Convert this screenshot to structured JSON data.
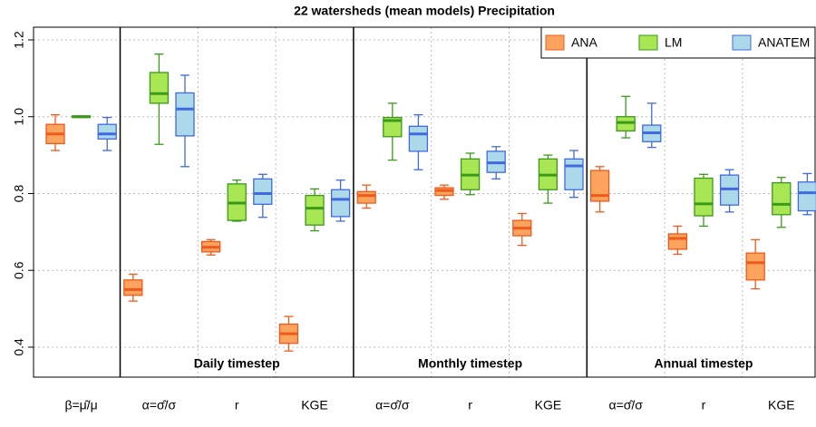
{
  "chart_data": {
    "type": "box",
    "title": "22 watersheds (mean models) Precipitation",
    "categories": [
      "β=μ̂/μ",
      "α=σ̂/σ",
      "r",
      "KGE",
      "α=σ̂/σ",
      "r",
      "KGE",
      "α=σ̂/σ",
      "r",
      "KGE"
    ],
    "annotations": [
      "Daily timestep",
      "Monthly timestep",
      "Annual timestep"
    ],
    "ylim": [
      0.322,
      1.233
    ],
    "yticks": [
      0.4,
      0.6,
      0.8,
      {
        "value": 1,
        "label": "1.0"
      },
      1.2
    ],
    "grid": true,
    "legend": "top-right",
    "series": [
      {
        "name": "ANA",
        "color": "#fca35d",
        "edge": "#ef5a1c",
        "low": [
          0.912,
          0.52,
          0.64,
          0.39,
          0.762,
          0.785,
          0.665,
          0.752,
          0.642,
          0.552
        ],
        "q1": [
          0.93,
          0.535,
          0.648,
          0.41,
          0.775,
          0.795,
          0.69,
          0.78,
          0.655,
          0.575
        ],
        "median": [
          0.955,
          0.55,
          0.66,
          0.435,
          0.795,
          0.808,
          0.71,
          0.795,
          0.683,
          0.62
        ],
        "q3": [
          0.98,
          0.575,
          0.675,
          0.46,
          0.805,
          0.815,
          0.73,
          0.86,
          0.695,
          0.645
        ],
        "high": [
          1.005,
          0.59,
          0.68,
          0.48,
          0.822,
          0.822,
          0.748,
          0.87,
          0.715,
          0.68
        ]
      },
      {
        "name": "LM",
        "color": "#a9e653",
        "edge": "#3a9a1a",
        "low": [
          0.998,
          0.928,
          0.728,
          0.703,
          0.887,
          0.797,
          0.775,
          0.945,
          0.715,
          0.712
        ],
        "q1": [
          0.998,
          1.035,
          0.73,
          0.718,
          0.948,
          0.81,
          0.81,
          0.963,
          0.742,
          0.745
        ],
        "median": [
          1.0,
          1.06,
          0.775,
          0.762,
          0.99,
          0.848,
          0.848,
          0.985,
          0.773,
          0.772
        ],
        "q3": [
          1.002,
          1.115,
          0.825,
          0.795,
          0.998,
          0.89,
          0.89,
          1.0,
          0.84,
          0.828
        ],
        "high": [
          1.002,
          1.163,
          0.835,
          0.812,
          1.035,
          0.905,
          0.9,
          1.053,
          0.85,
          0.842
        ]
      },
      {
        "name": "ANATEM",
        "color": "#acd9e9",
        "edge": "#4169e1",
        "low": [
          0.912,
          0.87,
          0.738,
          0.728,
          0.862,
          0.838,
          0.79,
          0.92,
          0.752,
          0.745
        ],
        "q1": [
          0.942,
          0.95,
          0.772,
          0.74,
          0.91,
          0.855,
          0.81,
          0.935,
          0.77,
          0.755
        ],
        "median": [
          0.955,
          1.02,
          0.8,
          0.785,
          0.955,
          0.88,
          0.872,
          0.958,
          0.812,
          0.802
        ],
        "q3": [
          0.98,
          1.062,
          0.838,
          0.81,
          0.975,
          0.91,
          0.89,
          0.978,
          0.848,
          0.83
        ],
        "high": [
          0.998,
          1.108,
          0.85,
          0.835,
          1.005,
          0.922,
          0.912,
          1.035,
          0.862,
          0.852
        ]
      }
    ]
  }
}
